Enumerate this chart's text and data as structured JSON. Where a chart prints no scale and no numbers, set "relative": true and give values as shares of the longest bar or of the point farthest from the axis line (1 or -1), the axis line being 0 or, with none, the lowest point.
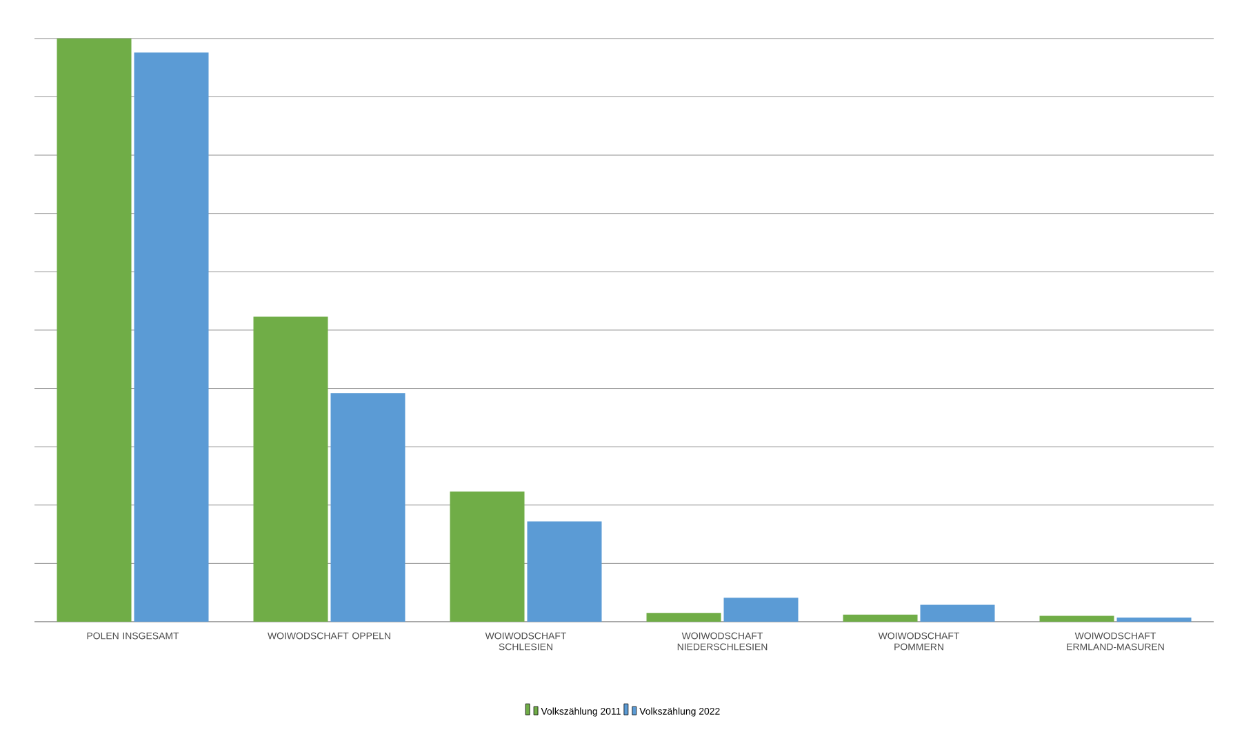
{
  "chart_data": {
    "type": "bar",
    "relative": true,
    "grid": "y",
    "legend": "bottom",
    "categories": [
      "POLEN INSGESAMT",
      "WOIWODSCHAFT OPPELN",
      "WOIWODSCHAFT SCHLESIEN",
      "WOIWODSCHAFT NIEDERSCHLESIEN",
      "WOIWODSCHAFT POMMERN",
      "WOIWODSCHAFT ERMLAND-MASUREN"
    ],
    "series": [
      {
        "name": "Volkszählung 2011",
        "color": "#70ad47",
        "values": [
          1.0,
          0.523,
          0.223,
          0.015,
          0.012,
          0.01
        ]
      },
      {
        "name": "Volkszählung 2022",
        "color": "#5b9bd5",
        "values": [
          0.976,
          0.392,
          0.172,
          0.041,
          0.029,
          0.007
        ]
      }
    ]
  }
}
